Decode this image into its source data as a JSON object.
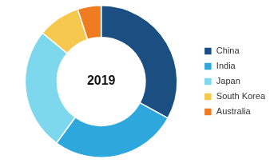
{
  "chart_data": {
    "type": "doughnut",
    "title": "2019",
    "categories": [
      "China",
      "India",
      "Japan",
      "South Korea",
      "Australia"
    ],
    "values": [
      33,
      27,
      26,
      9,
      5
    ],
    "colors": [
      "#1b4f82",
      "#2ea8dc",
      "#7dd8ee",
      "#f6c94e",
      "#f07c20"
    ],
    "legend": "right"
  }
}
